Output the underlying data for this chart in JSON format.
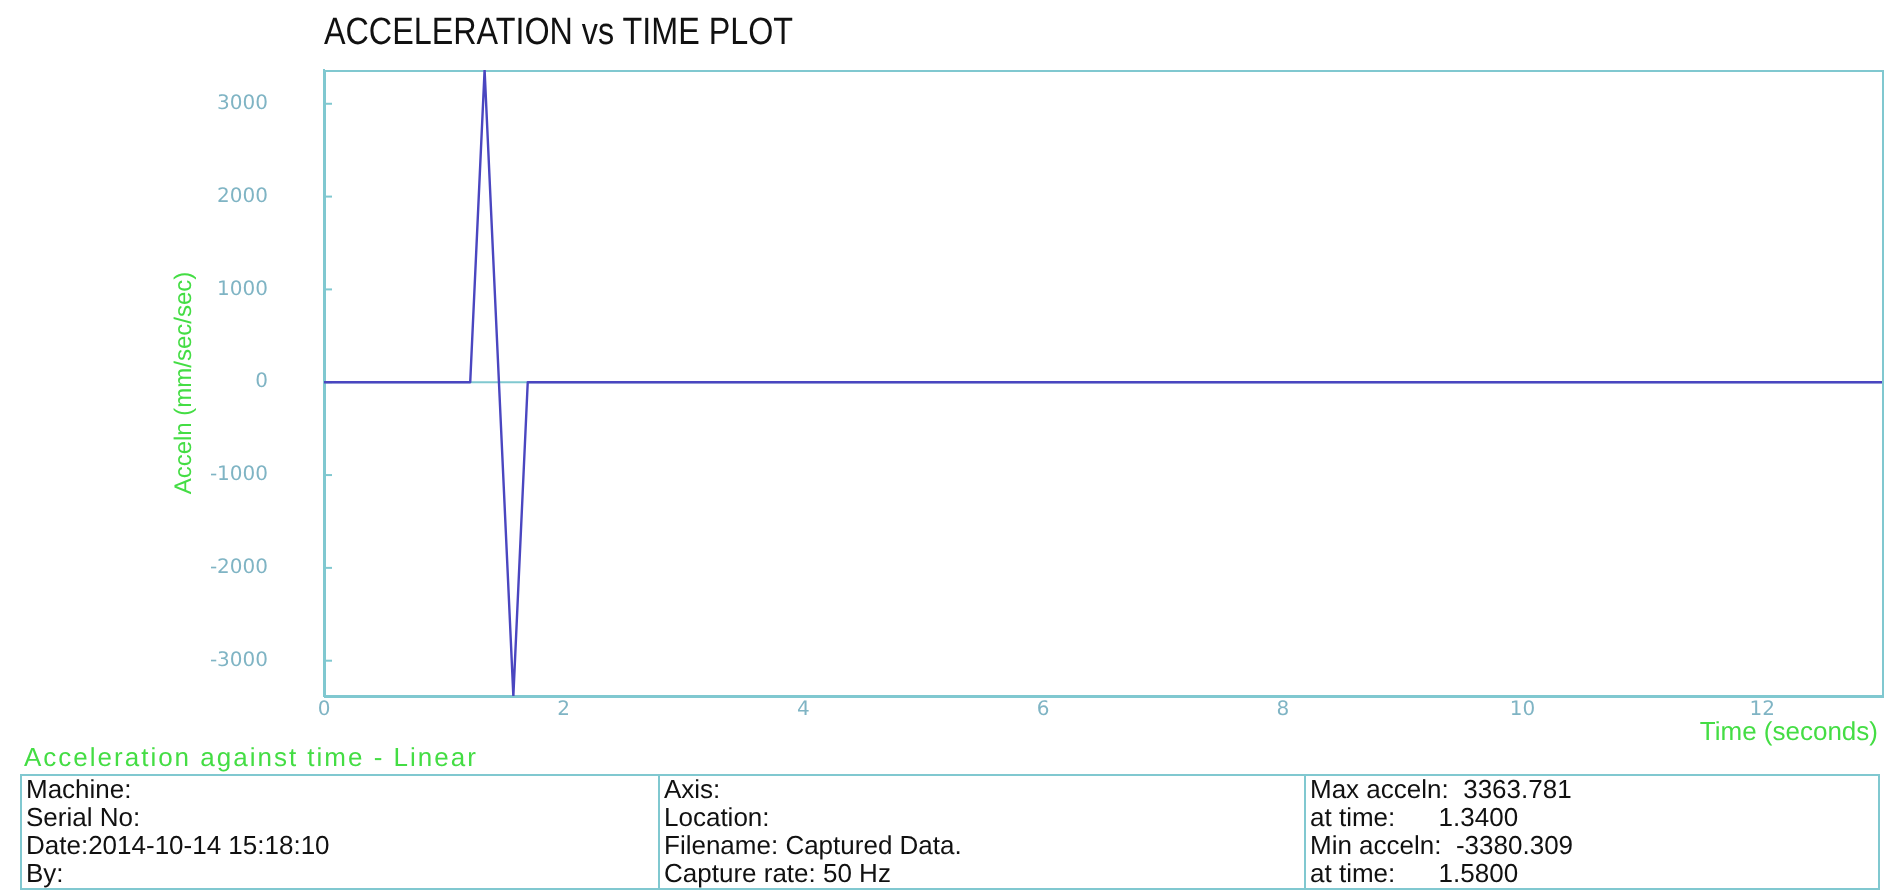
{
  "chart_data": {
    "type": "line",
    "title": "ACCELERATION vs TIME PLOT",
    "xlabel": "Time (seconds)",
    "ylabel": "Acceln (mm/sec/sec)",
    "series": [
      {
        "color": "#4a46c0",
        "x": [
          0,
          1.22,
          1.34,
          1.58,
          1.7,
          13
        ],
        "values": [
          0,
          0,
          3363.781,
          -3380.309,
          0,
          0
        ]
      }
    ],
    "xlim": [
      0,
      13
    ],
    "xticks": [
      0,
      2,
      4,
      6,
      8,
      10,
      12
    ],
    "ylim": [
      -3380.309,
      3363.781
    ],
    "yticks": [
      -3000,
      -2000,
      -1000,
      0,
      1000,
      2000,
      3000
    ],
    "ref_lines": [
      {
        "axis": "y",
        "value": 0,
        "color": "#80c8d0"
      }
    ],
    "grid": false,
    "legend": false,
    "marker": "none",
    "line_style": "solid",
    "annotations": [
      "Acceleration against time - Linear",
      "Machine:",
      "Serial No:",
      "Date:2014-10-14 15:18:10",
      "By:",
      "Axis:",
      "Location:",
      "Filename: Captured Data.",
      "Capture rate: 50 Hz",
      "Max acceln:  3363.781",
      "at time:      1.3400",
      "Min acceln:  -3380.309",
      "at time:      1.5800"
    ]
  }
}
